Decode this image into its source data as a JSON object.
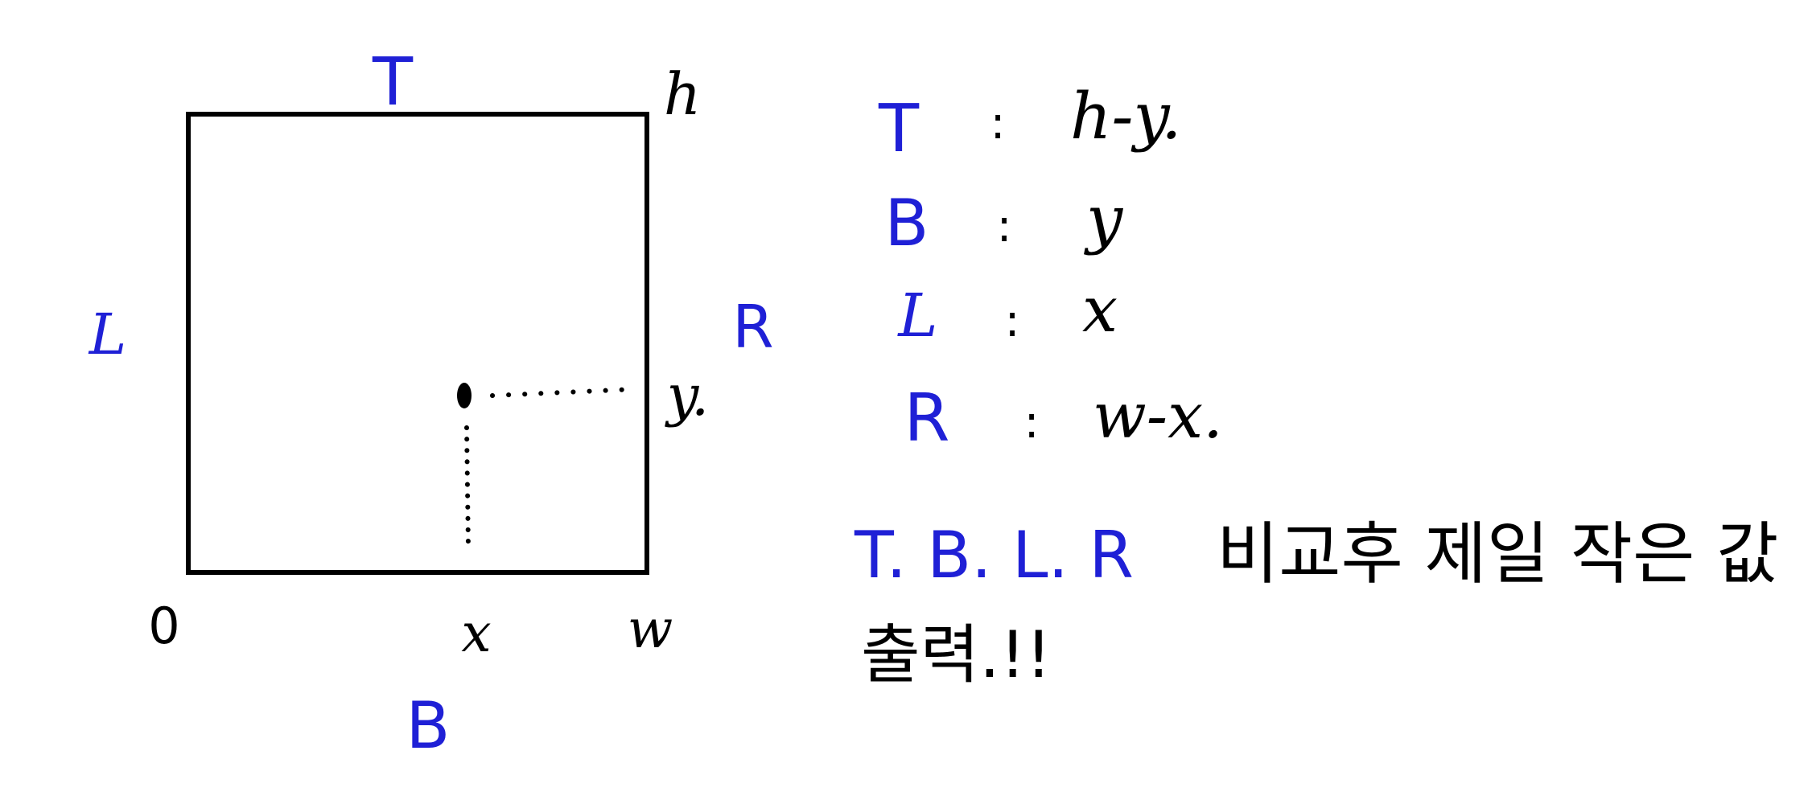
{
  "colors": {
    "ink": "#000000",
    "accent": "#1f20d6"
  },
  "diagram": {
    "side_labels": {
      "top": "T",
      "bottom": "B",
      "left": "L",
      "right": "R"
    },
    "corner_labels": {
      "origin": "0",
      "width": "w",
      "height": "h"
    },
    "point_labels": {
      "x": "x",
      "y": "y."
    }
  },
  "formulas": [
    {
      "name": "T",
      "sep": ":",
      "expr": "h-y."
    },
    {
      "name": "B",
      "sep": ":",
      "expr": "y"
    },
    {
      "name": "L",
      "sep": ":",
      "expr": "x"
    },
    {
      "name": "R",
      "sep": ":",
      "expr": "w-x."
    }
  ],
  "note": {
    "labels": "T. B. L. R",
    "text_line1": "비교후 제일 작은 값",
    "text_line2": "출력.!!"
  }
}
